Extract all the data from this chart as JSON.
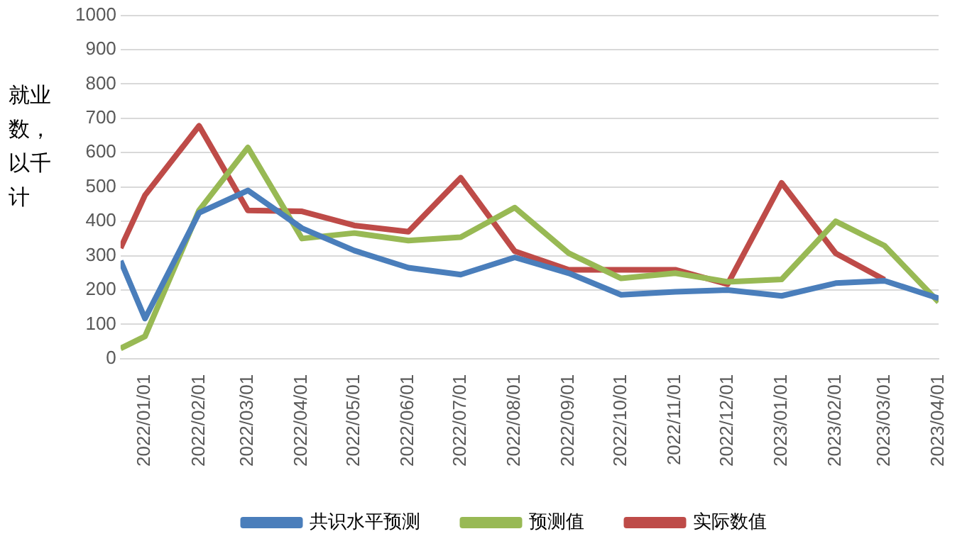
{
  "chart_data": {
    "type": "line",
    "ylabel": "就业数，以千计",
    "x": [
      "2021-12-18",
      "2022-01-01",
      "2022-02-01",
      "2022-03-01",
      "2022-04-01",
      "2022-05-01",
      "2022-06-01",
      "2022-07-01",
      "2022-08-01",
      "2022-09-01",
      "2022-10-01",
      "2022-11-01",
      "2022-12-01",
      "2023-01-01",
      "2023-02-01",
      "2023-03-01",
      "2023-04-01"
    ],
    "xlim": [
      "2021-12-18",
      "2023-04-01"
    ],
    "xticks": [
      {
        "value": "2022-01-01",
        "label": "2022/01/01"
      },
      {
        "value": "2022-02-01",
        "label": "2022/02/01"
      },
      {
        "value": "2022-03-01",
        "label": "2022/03/01"
      },
      {
        "value": "2022-04-01",
        "label": "2022/04/01"
      },
      {
        "value": "2022-05-01",
        "label": "2022/05/01"
      },
      {
        "value": "2022-06-01",
        "label": "2022/06/01"
      },
      {
        "value": "2022-07-01",
        "label": "2022/07/01"
      },
      {
        "value": "2022-08-01",
        "label": "2022/08/01"
      },
      {
        "value": "2022-09-01",
        "label": "2022/09/01"
      },
      {
        "value": "2022-10-01",
        "label": "2022/10/01"
      },
      {
        "value": "2022-11-01",
        "label": "2022/11/01"
      },
      {
        "value": "2022-12-01",
        "label": "2022/12/01"
      },
      {
        "value": "2023-01-01",
        "label": "2023/01/01"
      },
      {
        "value": "2023-02-01",
        "label": "2023/02/01"
      },
      {
        "value": "2023-03-01",
        "label": "2023/03/01"
      },
      {
        "value": "2023-04-01",
        "label": "2023/04/01"
      }
    ],
    "ylim": [
      0,
      1000
    ],
    "yticks": [
      0,
      100,
      200,
      300,
      400,
      500,
      600,
      700,
      800,
      900,
      1000
    ],
    "grid": "y",
    "legend": "bottom",
    "marker": "none",
    "line_style": "solid",
    "series": [
      {
        "name": "共识水平预测",
        "color": "#4a7ebb",
        "values": [
          285,
          117,
          425,
          490,
          380,
          315,
          265,
          245,
          295,
          249,
          186,
          195,
          200,
          183,
          220,
          227,
          176
        ]
      },
      {
        "name": "预测值",
        "color": "#98b954",
        "values": [
          30,
          65,
          432,
          615,
          350,
          366,
          344,
          354,
          440,
          307,
          234,
          249,
          224,
          231,
          400,
          329,
          165
        ]
      },
      {
        "name": "实际数值",
        "color": "#be4b48",
        "values": [
          322,
          476,
          678,
          432,
          429,
          388,
          370,
          527,
          313,
          259,
          259,
          259,
          217,
          512,
          307,
          230,
          null
        ]
      }
    ]
  }
}
